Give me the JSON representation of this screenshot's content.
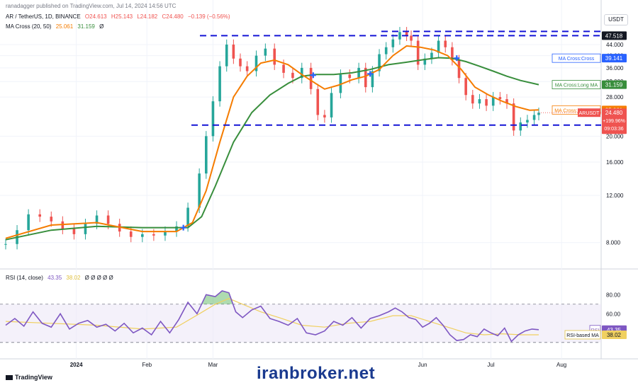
{
  "header": {
    "publisher": "ranadagger published on TradingView.com, Jul 14, 2024 14:56 UTC",
    "symbol": "AR / TetherUS, 1D, BINANCE",
    "o": "O24.613",
    "h": "H25.143",
    "l": "L24.182",
    "c": "C24.480",
    "chg": "−0.139 (−0.56%)",
    "ma_label": "MA Cross (20, 50)",
    "ma_v1": "25.061",
    "ma_v2": "31.159",
    "ma_v3": "Ø",
    "rsi_label": "RSI (14, close)",
    "rsi_v1": "43.35",
    "rsi_v2": "38.02",
    "rsi_rest": "Ø Ø Ø Ø Ø",
    "currency": "USDT"
  },
  "colors": {
    "up": "#26a69a",
    "down": "#ef5350",
    "ma20": "#f57c00",
    "ma50": "#388e3c",
    "level": "#1515d6",
    "rsi": "#7e57c2",
    "rsi_ma": "#f0d060",
    "cross_badge": "#2962ff"
  },
  "chart_data": {
    "type": "candlestick",
    "price_ticks": [
      "44.000",
      "40.000",
      "36.000",
      "32.000",
      "28.000",
      "20.000",
      "16.000",
      "12.000",
      "8.000"
    ],
    "price_tick_values": [
      44,
      40,
      36,
      32,
      28,
      20,
      16,
      12,
      8
    ],
    "x_ticks": [
      "2024",
      "Feb",
      "Mar",
      "Jun",
      "Jul",
      "Aug"
    ],
    "x_tick_days": [
      31,
      62,
      91,
      183,
      213,
      244
    ],
    "levels": [
      {
        "label": "47.518",
        "value": 47.518
      },
      {
        "label": "22.000",
        "value": 22.0
      }
    ],
    "ma_cross_labels": [
      {
        "text": "MA Cross:Cross",
        "value_text": "39.141",
        "value": 39.141
      },
      {
        "text": "MA Cross:Long MA",
        "value_text": "31.159",
        "value": 31.159
      },
      {
        "text": "MA Cross:Short MA",
        "value_text": "25.061",
        "value": 25.061
      }
    ],
    "last_price": {
      "label": "ARUSDT",
      "value_text": "24.480",
      "change": "+199.96%",
      "countdown": "09:03:36",
      "value": 24.48
    },
    "series_close": [
      [
        0,
        7.9
      ],
      [
        5,
        8.9
      ],
      [
        10,
        10.2
      ],
      [
        15,
        10.0
      ],
      [
        20,
        9.6
      ],
      [
        25,
        9.0
      ],
      [
        30,
        8.6
      ],
      [
        35,
        9.4
      ],
      [
        40,
        10.1
      ],
      [
        45,
        9.4
      ],
      [
        50,
        8.8
      ],
      [
        55,
        8.4
      ],
      [
        60,
        8.6
      ],
      [
        65,
        8.5
      ],
      [
        70,
        8.8
      ],
      [
        75,
        9.2
      ],
      [
        80,
        10.8
      ],
      [
        85,
        14.5
      ],
      [
        88,
        20.0
      ],
      [
        91,
        27.0
      ],
      [
        94,
        36.5
      ],
      [
        97,
        44.0
      ],
      [
        100,
        39.0
      ],
      [
        103,
        36.5
      ],
      [
        106,
        35.0
      ],
      [
        110,
        40.0
      ],
      [
        114,
        42.5
      ],
      [
        118,
        37.0
      ],
      [
        122,
        34.5
      ],
      [
        126,
        33.0
      ],
      [
        130,
        36.0
      ],
      [
        134,
        30.0
      ],
      [
        137,
        24.0
      ],
      [
        140,
        23.5
      ],
      [
        143,
        29.0
      ],
      [
        147,
        34.0
      ],
      [
        151,
        33.0
      ],
      [
        155,
        36.0
      ],
      [
        158,
        30.5
      ],
      [
        161,
        35.0
      ],
      [
        164,
        40.5
      ],
      [
        167,
        43.0
      ],
      [
        170,
        46.0
      ],
      [
        173,
        49.0
      ],
      [
        176,
        47.5
      ],
      [
        178,
        45.5
      ],
      [
        181,
        37.0
      ],
      [
        184,
        39.0
      ],
      [
        187,
        41.0
      ],
      [
        190,
        45.5
      ],
      [
        193,
        43.0
      ],
      [
        196,
        38.5
      ],
      [
        199,
        33.0
      ],
      [
        202,
        28.5
      ],
      [
        205,
        26.5
      ],
      [
        208,
        27.5
      ],
      [
        211,
        26.0
      ],
      [
        214,
        28.0
      ],
      [
        217,
        27.5
      ],
      [
        220,
        26.5
      ],
      [
        223,
        21.0
      ],
      [
        226,
        22.5
      ],
      [
        229,
        23.0
      ],
      [
        232,
        24.0
      ],
      [
        234,
        24.48
      ]
    ],
    "ma20": [
      [
        0,
        8.3
      ],
      [
        20,
        9.3
      ],
      [
        40,
        9.5
      ],
      [
        60,
        8.8
      ],
      [
        75,
        8.8
      ],
      [
        82,
        9.5
      ],
      [
        88,
        12.5
      ],
      [
        94,
        19.0
      ],
      [
        100,
        28.0
      ],
      [
        106,
        33.5
      ],
      [
        112,
        37.5
      ],
      [
        118,
        38.5
      ],
      [
        124,
        37.0
      ],
      [
        130,
        34.0
      ],
      [
        136,
        31.5
      ],
      [
        140,
        30.0
      ],
      [
        146,
        31.0
      ],
      [
        152,
        32.5
      ],
      [
        158,
        33.5
      ],
      [
        164,
        35.5
      ],
      [
        170,
        40.0
      ],
      [
        176,
        43.5
      ],
      [
        182,
        43.0
      ],
      [
        188,
        42.0
      ],
      [
        194,
        40.0
      ],
      [
        200,
        35.5
      ],
      [
        206,
        30.5
      ],
      [
        212,
        28.5
      ],
      [
        218,
        27.0
      ],
      [
        224,
        25.8
      ],
      [
        230,
        25.0
      ],
      [
        234,
        25.061
      ]
    ],
    "ma50": [
      [
        0,
        8.2
      ],
      [
        20,
        8.9
      ],
      [
        40,
        9.2
      ],
      [
        60,
        9.1
      ],
      [
        80,
        9.1
      ],
      [
        86,
        10.0
      ],
      [
        92,
        13.0
      ],
      [
        100,
        19.0
      ],
      [
        108,
        24.5
      ],
      [
        116,
        28.5
      ],
      [
        124,
        31.5
      ],
      [
        130,
        33.5
      ],
      [
        136,
        34.0
      ],
      [
        144,
        34.0
      ],
      [
        152,
        34.5
      ],
      [
        160,
        35.5
      ],
      [
        168,
        37.0
      ],
      [
        176,
        37.8
      ],
      [
        184,
        38.7
      ],
      [
        190,
        39.3
      ],
      [
        196,
        39.1
      ],
      [
        202,
        38.0
      ],
      [
        208,
        36.5
      ],
      [
        214,
        35.0
      ],
      [
        220,
        33.5
      ],
      [
        226,
        32.3
      ],
      [
        234,
        31.159
      ]
    ],
    "crosses": [
      [
        78,
        9.1
      ],
      [
        135,
        33.8
      ],
      [
        160,
        34.2
      ],
      [
        198,
        39.141
      ]
    ],
    "rsi_ticks": [
      "80.00",
      "60.00"
    ],
    "rsi_tick_values": [
      80,
      60
    ],
    "rsi_levels": [
      70,
      30
    ],
    "rsi": [
      [
        0,
        48
      ],
      [
        4,
        55
      ],
      [
        8,
        47
      ],
      [
        12,
        62
      ],
      [
        16,
        50
      ],
      [
        20,
        46
      ],
      [
        24,
        60
      ],
      [
        28,
        44
      ],
      [
        32,
        50
      ],
      [
        36,
        53
      ],
      [
        40,
        46
      ],
      [
        44,
        49
      ],
      [
        48,
        42
      ],
      [
        52,
        50
      ],
      [
        56,
        40
      ],
      [
        60,
        45
      ],
      [
        64,
        38
      ],
      [
        68,
        52
      ],
      [
        72,
        40
      ],
      [
        76,
        54
      ],
      [
        80,
        72
      ],
      [
        84,
        60
      ],
      [
        88,
        80
      ],
      [
        92,
        78
      ],
      [
        95,
        84
      ],
      [
        98,
        82
      ],
      [
        101,
        62
      ],
      [
        104,
        56
      ],
      [
        108,
        64
      ],
      [
        112,
        68
      ],
      [
        116,
        55
      ],
      [
        120,
        52
      ],
      [
        124,
        48
      ],
      [
        128,
        55
      ],
      [
        132,
        40
      ],
      [
        136,
        38
      ],
      [
        140,
        42
      ],
      [
        144,
        52
      ],
      [
        148,
        48
      ],
      [
        152,
        56
      ],
      [
        156,
        45
      ],
      [
        160,
        55
      ],
      [
        164,
        58
      ],
      [
        168,
        62
      ],
      [
        171,
        66
      ],
      [
        174,
        62
      ],
      [
        177,
        56
      ],
      [
        180,
        54
      ],
      [
        183,
        46
      ],
      [
        186,
        50
      ],
      [
        189,
        56
      ],
      [
        192,
        48
      ],
      [
        195,
        38
      ],
      [
        198,
        32
      ],
      [
        201,
        33
      ],
      [
        204,
        38
      ],
      [
        207,
        36
      ],
      [
        210,
        44
      ],
      [
        213,
        40
      ],
      [
        216,
        37
      ],
      [
        219,
        45
      ],
      [
        222,
        31
      ],
      [
        225,
        38
      ],
      [
        228,
        42
      ],
      [
        231,
        44
      ],
      [
        234,
        43.35
      ]
    ],
    "rsi_ma": [
      [
        0,
        52
      ],
      [
        20,
        50
      ],
      [
        40,
        48
      ],
      [
        60,
        44
      ],
      [
        75,
        46
      ],
      [
        85,
        60
      ],
      [
        92,
        70
      ],
      [
        98,
        76
      ],
      [
        104,
        70
      ],
      [
        112,
        62
      ],
      [
        120,
        56
      ],
      [
        130,
        48
      ],
      [
        140,
        46
      ],
      [
        150,
        50
      ],
      [
        160,
        52
      ],
      [
        170,
        58
      ],
      [
        178,
        58
      ],
      [
        186,
        52
      ],
      [
        194,
        46
      ],
      [
        202,
        40
      ],
      [
        210,
        38
      ],
      [
        218,
        39
      ],
      [
        226,
        38
      ],
      [
        234,
        38.02
      ]
    ]
  },
  "watermark": "iranbroker.net",
  "brand": "TradingView"
}
